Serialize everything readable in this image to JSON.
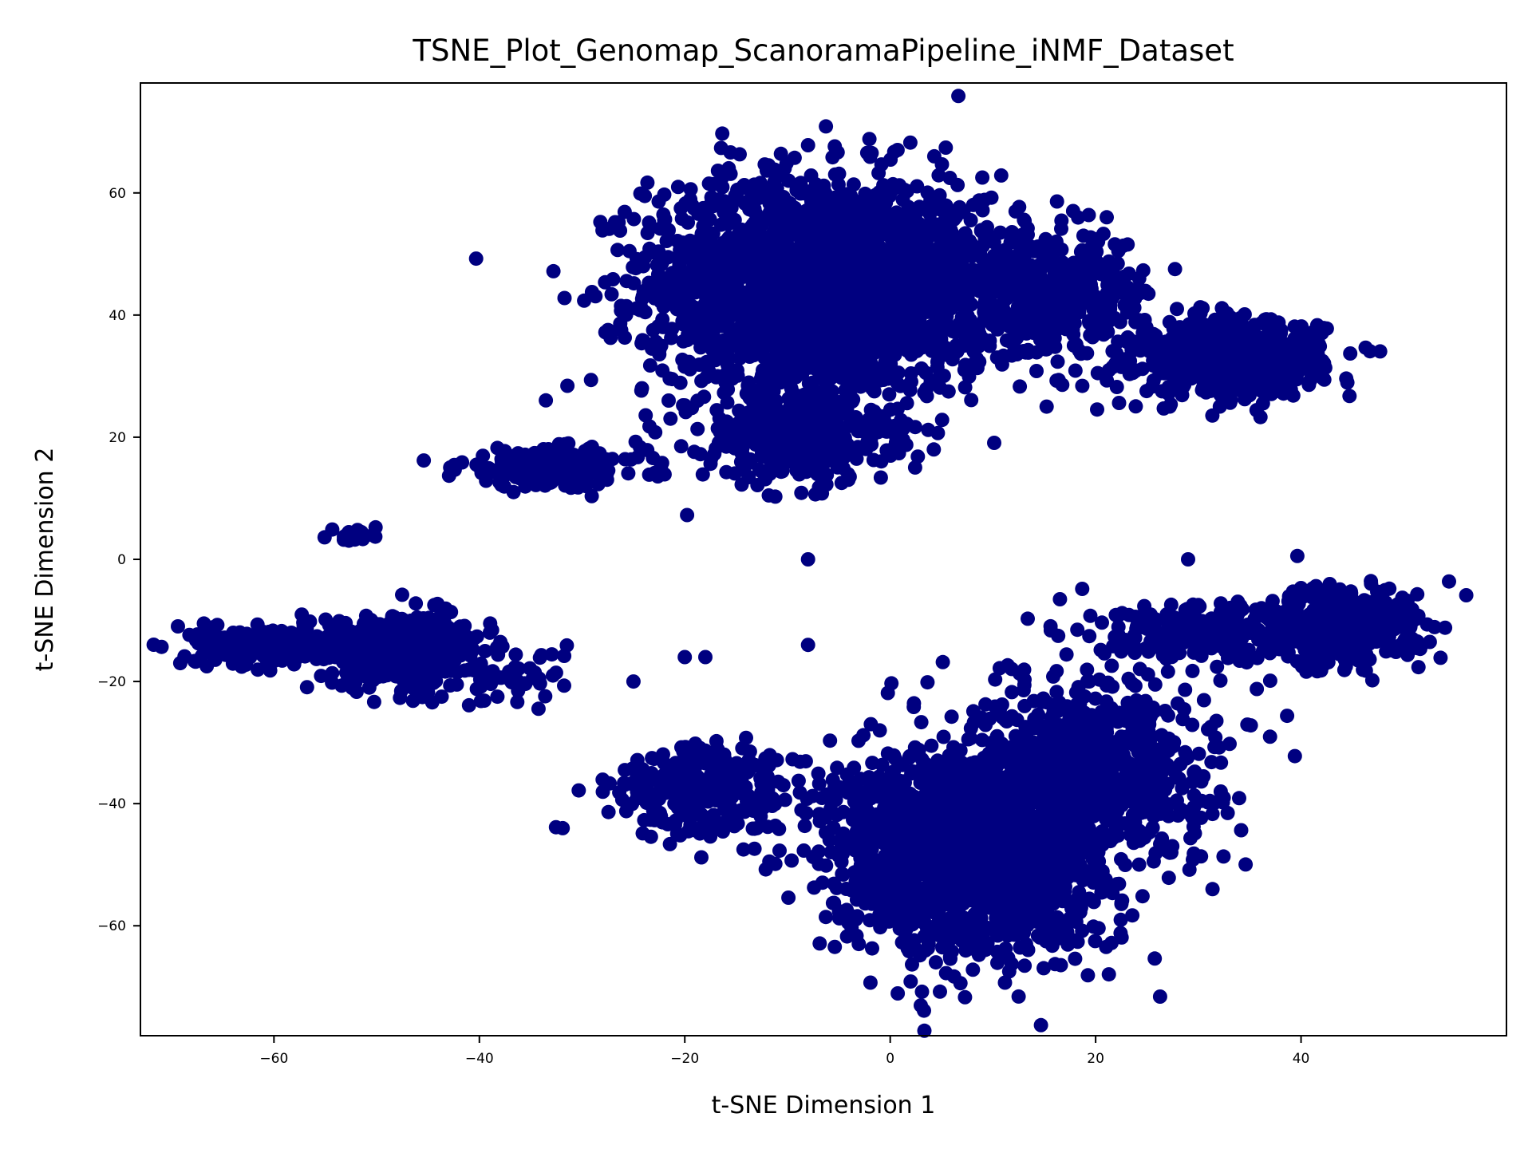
{
  "chart_data": {
    "type": "scatter",
    "title": "TSNE_Plot_Genomap_ScanoramaPipeline_iNMF_Dataset",
    "xlabel": "t-SNE Dimension 1",
    "ylabel": "t-SNE Dimension 2",
    "xlim": [
      -73,
      60
    ],
    "ylim": [
      -78,
      78
    ],
    "xticks": [
      -60,
      -40,
      -20,
      0,
      20,
      40
    ],
    "yticks": [
      -60,
      -40,
      -20,
      0,
      20,
      40,
      60
    ],
    "xtick_labels": [
      "−60",
      "−40",
      "−20",
      "0",
      "20",
      "40"
    ],
    "ytick_labels": [
      "−60",
      "−40",
      "−20",
      "0",
      "20",
      "40",
      "60"
    ],
    "grid": false,
    "legend": "none",
    "point_color": "#000080",
    "clusters": [
      {
        "center": [
          -7,
          45
        ],
        "spread": [
          11,
          12
        ],
        "count": 2200
      },
      {
        "center": [
          -9,
          20
        ],
        "spread": [
          6,
          5
        ],
        "count": 400
      },
      {
        "center": [
          -33,
          15
        ],
        "spread": [
          6,
          2
        ],
        "count": 250
      },
      {
        "center": [
          14,
          43
        ],
        "spread": [
          8,
          7
        ],
        "count": 500
      },
      {
        "center": [
          33,
          33
        ],
        "spread": [
          6,
          4
        ],
        "count": 700
      },
      {
        "center": [
          -47,
          -15
        ],
        "spread": [
          5,
          4
        ],
        "count": 500
      },
      {
        "center": [
          -60,
          -14
        ],
        "spread": [
          5,
          2
        ],
        "count": 300
      },
      {
        "center": [
          -36,
          -19
        ],
        "spread": [
          3,
          3
        ],
        "count": 40
      },
      {
        "center": [
          -52,
          4
        ],
        "spread": [
          1.5,
          1
        ],
        "count": 25
      },
      {
        "center": [
          8,
          -48
        ],
        "spread": [
          9,
          11
        ],
        "count": 1800
      },
      {
        "center": [
          20,
          -33
        ],
        "spread": [
          8,
          9
        ],
        "count": 700
      },
      {
        "center": [
          -18,
          -38
        ],
        "spread": [
          6,
          5
        ],
        "count": 300
      },
      {
        "center": [
          44,
          -11
        ],
        "spread": [
          5,
          4
        ],
        "count": 500
      },
      {
        "center": [
          30,
          -12
        ],
        "spread": [
          7,
          3
        ],
        "count": 200
      }
    ],
    "isolated_points": [
      [
        -8,
        0
      ],
      [
        29,
        0
      ],
      [
        -20,
        -16
      ],
      [
        -18,
        -16
      ],
      [
        -8,
        -14
      ],
      [
        -25,
        -20
      ]
    ]
  }
}
